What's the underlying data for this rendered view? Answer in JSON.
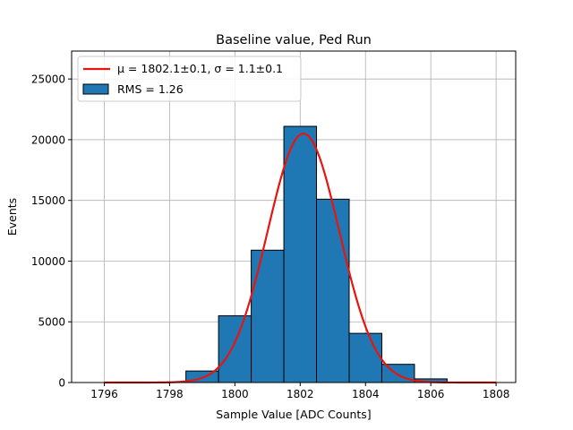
{
  "chart_data": {
    "type": "bar",
    "title": "Baseline value, Ped Run",
    "xlabel": "Sample Value [ADC Counts]",
    "ylabel": "Events",
    "xlim": [
      1795,
      1808.6
    ],
    "ylim": [
      0,
      27300
    ],
    "grid": true,
    "legend_position": "top-left",
    "xticks": [
      1796,
      1798,
      1800,
      1802,
      1804,
      1806,
      1808
    ],
    "yticks": [
      0,
      5000,
      10000,
      15000,
      20000,
      25000
    ],
    "bin_edges": [
      1795.5,
      1796.5,
      1797.5,
      1798.5,
      1799.5,
      1800.5,
      1801.5,
      1802.5,
      1803.5,
      1804.5,
      1805.5,
      1806.5,
      1807.5,
      1808.5
    ],
    "counts": [
      0,
      0,
      0,
      950,
      5500,
      10900,
      21100,
      15100,
      4050,
      1500,
      300,
      0,
      0
    ],
    "histogram_label": "RMS = 1.26",
    "histogram_color": "#1f77b4",
    "fit": {
      "label_mu": "μ = 1802.1±0.1, ",
      "label_sigma": "σ = 1.1±0.1",
      "mu": 1802.1,
      "sigma": 1.1,
      "amplitude": 20500,
      "x_range": [
        1796,
        1808
      ],
      "color": "#e8140f"
    }
  }
}
